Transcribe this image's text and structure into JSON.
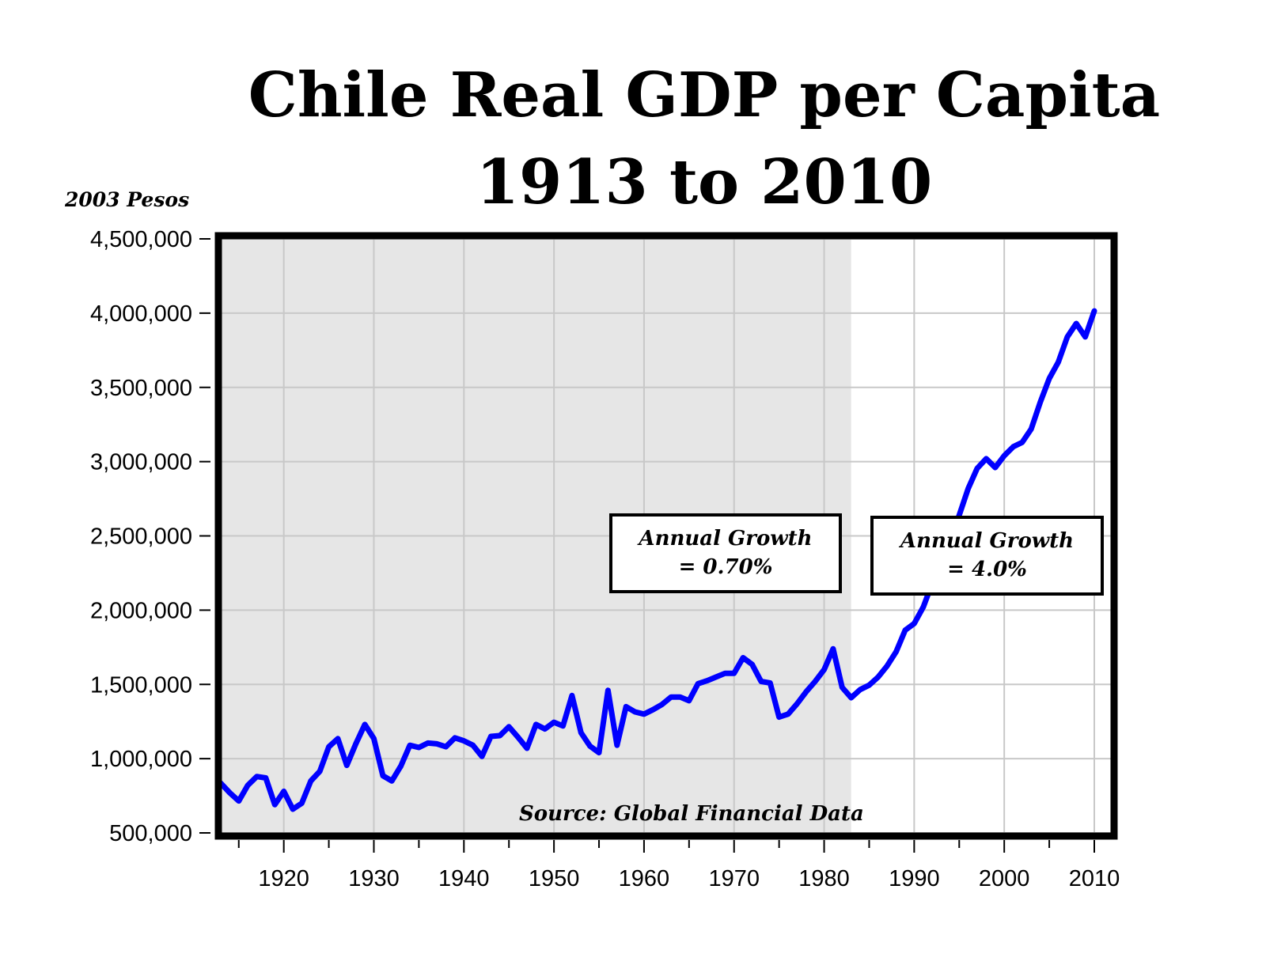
{
  "chart_data": {
    "type": "line",
    "title": "Chile Real GDP per Capita",
    "subtitle": "1913 to 2010",
    "ylabel": "2003 Pesos",
    "xlabel": "",
    "xlim": [
      1913,
      2011
    ],
    "ylim": [
      500000,
      4500000
    ],
    "y_ticks": [
      500000,
      1000000,
      1500000,
      2000000,
      2500000,
      3000000,
      3500000,
      4000000,
      4500000
    ],
    "y_tick_labels": [
      "500,000",
      "1,000,000",
      "1,500,000",
      "2,000,000",
      "2,500,000",
      "3,000,000",
      "3,500,000",
      "4,000,000",
      "4,500,000"
    ],
    "x_ticks": [
      1920,
      1930,
      1940,
      1950,
      1960,
      1970,
      1980,
      1990,
      2000,
      2010
    ],
    "x_tick_labels": [
      "1920",
      "1930",
      "1940",
      "1950",
      "1960",
      "1970",
      "1980",
      "1990",
      "2000",
      "2010"
    ],
    "grid": true,
    "shaded_period": [
      1913,
      1983
    ],
    "shade_color": "#e6e6e6",
    "line_color": "#0000ff",
    "x": [
      1913,
      1914,
      1915,
      1916,
      1917,
      1918,
      1919,
      1920,
      1921,
      1922,
      1923,
      1924,
      1925,
      1926,
      1927,
      1928,
      1929,
      1930,
      1931,
      1932,
      1933,
      1934,
      1935,
      1936,
      1937,
      1938,
      1939,
      1940,
      1941,
      1942,
      1943,
      1944,
      1945,
      1946,
      1947,
      1948,
      1949,
      1950,
      1951,
      1952,
      1953,
      1954,
      1955,
      1956,
      1957,
      1958,
      1959,
      1960,
      1961,
      1962,
      1963,
      1964,
      1965,
      1966,
      1967,
      1968,
      1969,
      1970,
      1971,
      1972,
      1973,
      1974,
      1975,
      1976,
      1977,
      1978,
      1979,
      1980,
      1981,
      1982,
      1983,
      1984,
      1985,
      1986,
      1987,
      1988,
      1989,
      1990,
      1991,
      1992,
      1993,
      1994,
      1995,
      1996,
      1997,
      1998,
      1999,
      2000,
      2001,
      2002,
      2003,
      2004,
      2005,
      2006,
      2007,
      2008,
      2009,
      2010
    ],
    "values": [
      835000,
      770000,
      715000,
      820000,
      880000,
      870000,
      690000,
      780000,
      660000,
      700000,
      850000,
      915000,
      1080000,
      1135000,
      955000,
      1100000,
      1230000,
      1135000,
      885000,
      850000,
      950000,
      1090000,
      1075000,
      1105000,
      1100000,
      1080000,
      1140000,
      1120000,
      1090000,
      1015000,
      1150000,
      1155000,
      1215000,
      1145000,
      1070000,
      1230000,
      1200000,
      1245000,
      1220000,
      1425000,
      1175000,
      1085000,
      1040000,
      1460000,
      1090000,
      1350000,
      1315000,
      1300000,
      1330000,
      1365000,
      1415000,
      1415000,
      1390000,
      1505000,
      1525000,
      1550000,
      1575000,
      1575000,
      1680000,
      1635000,
      1520000,
      1510000,
      1280000,
      1300000,
      1370000,
      1450000,
      1520000,
      1600000,
      1740000,
      1480000,
      1410000,
      1465000,
      1495000,
      1550000,
      1625000,
      1720000,
      1865000,
      1910000,
      2020000,
      2180000,
      2350000,
      2480000,
      2640000,
      2820000,
      2955000,
      3020000,
      2960000,
      3040000,
      3100000,
      3130000,
      3220000,
      3400000,
      3560000,
      3670000,
      3840000,
      3930000,
      3840000,
      4015000
    ],
    "annotations": [
      {
        "line1": "Annual Growth",
        "line2": "= 0.70%"
      },
      {
        "line1": "Annual Growth",
        "line2": "= 4.0%"
      }
    ],
    "source": "Source: Global Financial Data"
  }
}
